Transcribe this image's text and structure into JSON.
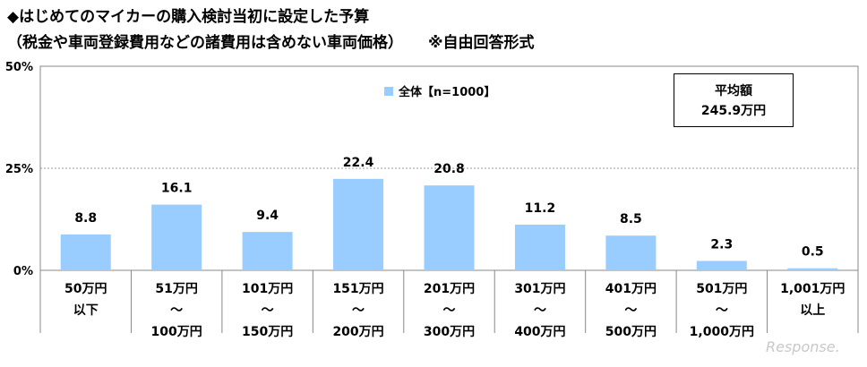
{
  "title": "◆はじめてのマイカーの購入検討当初に設定した予算",
  "subtitle": "（税金や車両登録費用などの諸費用は含めない車両価格）",
  "note": "※自由回答形式",
  "average_box": {
    "label": "平均額",
    "value": "245.9万円"
  },
  "watermark": "Response.",
  "colors": {
    "bar": "#99ccff",
    "axis": "#888888",
    "grid": "#999999"
  },
  "chart_data": {
    "type": "bar",
    "categories": [
      [
        "50万円",
        "以下"
      ],
      [
        "51万円",
        "～",
        "100万円"
      ],
      [
        "101万円",
        "～",
        "150万円"
      ],
      [
        "151万円",
        "～",
        "200万円"
      ],
      [
        "201万円",
        "～",
        "300万円"
      ],
      [
        "301万円",
        "～",
        "400万円"
      ],
      [
        "401万円",
        "～",
        "500万円"
      ],
      [
        "501万円",
        "～",
        "1,000万円"
      ],
      [
        "1,001万円",
        "以上"
      ]
    ],
    "series": [
      {
        "name": "全体【n=1000】",
        "values": [
          8.8,
          16.1,
          9.4,
          22.4,
          20.8,
          11.2,
          8.5,
          2.3,
          0.5
        ]
      }
    ],
    "value_labels": [
      "8.8",
      "16.1",
      "9.4",
      "22.4",
      "20.8",
      "11.2",
      "8.5",
      "2.3",
      "0.5"
    ],
    "yticks": [
      "0%",
      "25%",
      "50%"
    ],
    "ytick_values": [
      0,
      25,
      50
    ],
    "ylim": [
      0,
      50
    ],
    "grid": true,
    "legend": "top-center"
  }
}
